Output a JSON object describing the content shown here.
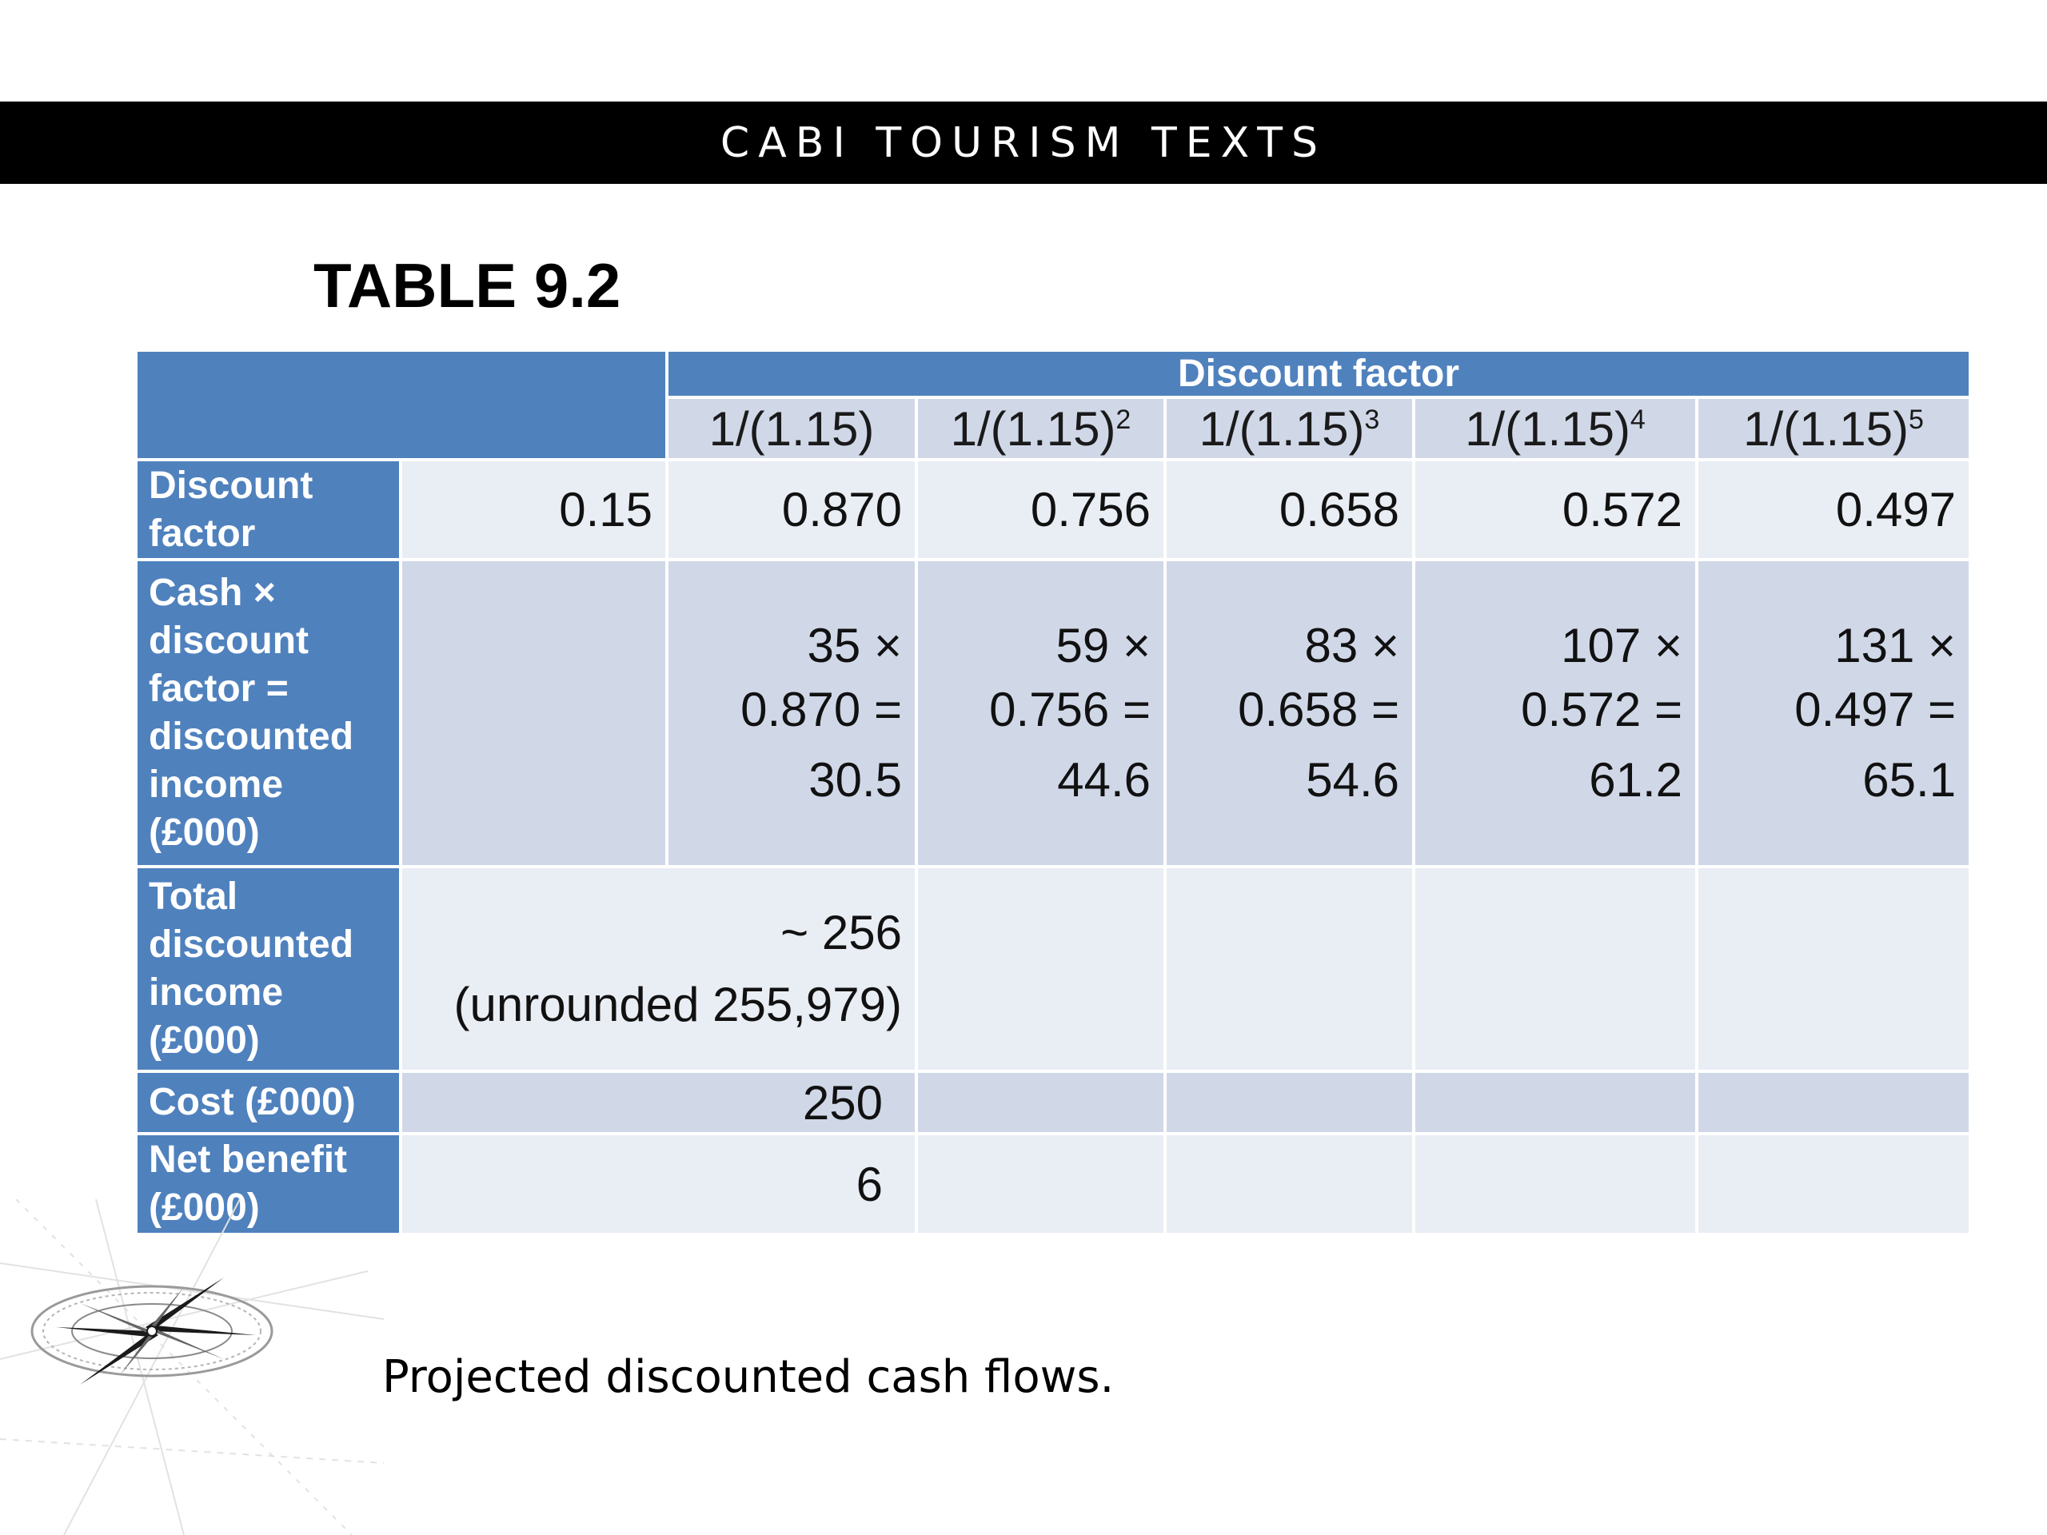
{
  "banner": {
    "title": "CABI TOURISM TEXTS"
  },
  "table_title": "TABLE 9.2",
  "table": {
    "header_band": "Discount factor",
    "sub_headers": [
      {
        "base": "1/(1.15)",
        "exp": ""
      },
      {
        "base": "1/(1.15)",
        "exp": "2"
      },
      {
        "base": "1/(1.15)",
        "exp": "3"
      },
      {
        "base": "1/(1.15)",
        "exp": "4"
      },
      {
        "base": "1/(1.15)",
        "exp": "5"
      }
    ],
    "rows": {
      "discount_factor": {
        "label": "Discount factor",
        "rate": "0.15",
        "values": [
          "0.870",
          "0.756",
          "0.658",
          "0.572",
          "0.497"
        ]
      },
      "cash": {
        "label": "Cash × discount factor = discounted income (£000)",
        "cells": [
          {
            "l1": "35 ×",
            "l2": "0.870 =",
            "l3": "30.5"
          },
          {
            "l1": "59 ×",
            "l2": "0.756 =",
            "l3": "44.6"
          },
          {
            "l1": "83 ×",
            "l2": "0.658 =",
            "l3": "54.6"
          },
          {
            "l1": "107 ×",
            "l2": "0.572 =",
            "l3": "61.2"
          },
          {
            "l1": "131 ×",
            "l2": "0.497 =",
            "l3": "65.1"
          }
        ]
      },
      "total": {
        "label": "Total discounted income (£000)",
        "value_line1": "~ 256",
        "value_line2": "(unrounded 255,979)"
      },
      "cost": {
        "label": "Cost (£000)",
        "value": "250"
      },
      "net": {
        "label": "Net benefit (£000)",
        "value": "6"
      }
    }
  },
  "caption": "Projected discounted cash flows."
}
